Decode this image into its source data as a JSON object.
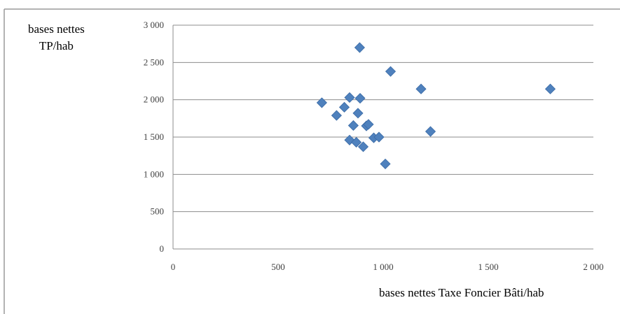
{
  "chart_data": {
    "type": "scatter",
    "title": "",
    "xlabel": "bases nettes Taxe Foncier Bâti/hab",
    "ylabel_lines": [
      "bases nettes",
      "TP/hab"
    ],
    "xlim": [
      0,
      2000
    ],
    "ylim": [
      0,
      3000
    ],
    "xticks": [
      "0",
      "500",
      "1 000",
      "1 500",
      "2 000"
    ],
    "yticks": [
      "0",
      "500",
      "1 000",
      "1 500",
      "2 000",
      "2 500",
      "3 000"
    ],
    "xtick_values": [
      0,
      500,
      1000,
      1500,
      2000
    ],
    "ytick_values": [
      0,
      500,
      1000,
      1500,
      2000,
      2500,
      3000
    ],
    "grid": "horizontal",
    "legend": "none",
    "marker": "diamond",
    "color": "#4F81BD",
    "points": [
      {
        "x": 888,
        "y": 2700
      },
      {
        "x": 1035,
        "y": 2380
      },
      {
        "x": 1180,
        "y": 2145
      },
      {
        "x": 1795,
        "y": 2145
      },
      {
        "x": 708,
        "y": 1960
      },
      {
        "x": 840,
        "y": 2030
      },
      {
        "x": 890,
        "y": 2020
      },
      {
        "x": 815,
        "y": 1900
      },
      {
        "x": 880,
        "y": 1820
      },
      {
        "x": 778,
        "y": 1790
      },
      {
        "x": 858,
        "y": 1655
      },
      {
        "x": 920,
        "y": 1650
      },
      {
        "x": 930,
        "y": 1670
      },
      {
        "x": 1225,
        "y": 1575
      },
      {
        "x": 955,
        "y": 1490
      },
      {
        "x": 980,
        "y": 1500
      },
      {
        "x": 840,
        "y": 1460
      },
      {
        "x": 872,
        "y": 1430
      },
      {
        "x": 905,
        "y": 1370
      },
      {
        "x": 1010,
        "y": 1140
      }
    ]
  }
}
